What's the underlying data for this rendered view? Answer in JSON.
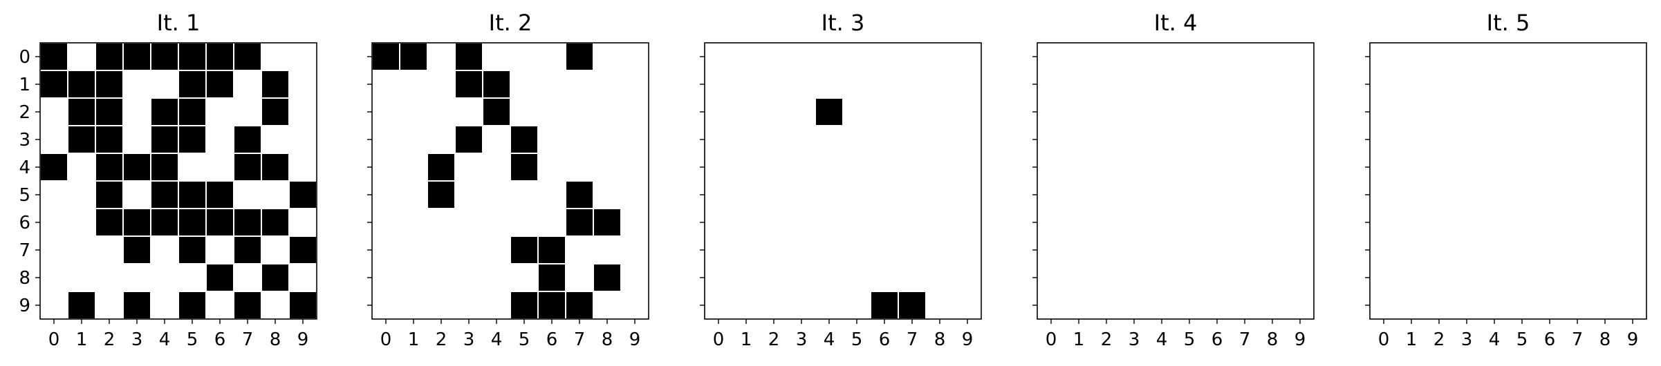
{
  "chart_data": [
    {
      "type": "heatmap",
      "title": "It. 1",
      "x_ticks": [
        "0",
        "1",
        "2",
        "3",
        "4",
        "5",
        "6",
        "7",
        "8",
        "9"
      ],
      "y_ticks": [
        "0",
        "1",
        "2",
        "3",
        "4",
        "5",
        "6",
        "7",
        "8",
        "9"
      ],
      "y_ticks_shown": true,
      "filled_color": "#000000",
      "empty_color": "#ffffff",
      "grid": [
        [
          1,
          0,
          1,
          1,
          1,
          1,
          1,
          1,
          0,
          0
        ],
        [
          1,
          1,
          1,
          0,
          0,
          1,
          1,
          0,
          1,
          0
        ],
        [
          0,
          1,
          1,
          0,
          1,
          1,
          0,
          0,
          1,
          0
        ],
        [
          0,
          1,
          1,
          0,
          1,
          1,
          0,
          1,
          0,
          0
        ],
        [
          1,
          0,
          1,
          1,
          1,
          0,
          0,
          1,
          1,
          0
        ],
        [
          0,
          0,
          1,
          0,
          1,
          1,
          1,
          0,
          0,
          1
        ],
        [
          0,
          0,
          1,
          1,
          1,
          1,
          1,
          1,
          1,
          0
        ],
        [
          0,
          0,
          0,
          1,
          0,
          1,
          0,
          1,
          0,
          1
        ],
        [
          0,
          0,
          0,
          0,
          0,
          0,
          1,
          0,
          1,
          0
        ],
        [
          0,
          1,
          0,
          1,
          0,
          1,
          0,
          1,
          0,
          1
        ]
      ]
    },
    {
      "type": "heatmap",
      "title": "It. 2",
      "x_ticks": [
        "0",
        "1",
        "2",
        "3",
        "4",
        "5",
        "6",
        "7",
        "8",
        "9"
      ],
      "y_ticks": [
        "0",
        "1",
        "2",
        "3",
        "4",
        "5",
        "6",
        "7",
        "8",
        "9"
      ],
      "y_ticks_shown": false,
      "filled_color": "#000000",
      "empty_color": "#ffffff",
      "grid": [
        [
          1,
          1,
          0,
          1,
          0,
          0,
          0,
          1,
          0,
          0
        ],
        [
          0,
          0,
          0,
          1,
          1,
          0,
          0,
          0,
          0,
          0
        ],
        [
          0,
          0,
          0,
          0,
          1,
          0,
          0,
          0,
          0,
          0
        ],
        [
          0,
          0,
          0,
          1,
          0,
          1,
          0,
          0,
          0,
          0
        ],
        [
          0,
          0,
          1,
          0,
          0,
          1,
          0,
          0,
          0,
          0
        ],
        [
          0,
          0,
          1,
          0,
          0,
          0,
          0,
          1,
          0,
          0
        ],
        [
          0,
          0,
          0,
          0,
          0,
          0,
          0,
          1,
          1,
          0
        ],
        [
          0,
          0,
          0,
          0,
          0,
          1,
          1,
          0,
          0,
          0
        ],
        [
          0,
          0,
          0,
          0,
          0,
          0,
          1,
          0,
          1,
          0
        ],
        [
          0,
          0,
          0,
          0,
          0,
          1,
          1,
          1,
          0,
          0
        ]
      ]
    },
    {
      "type": "heatmap",
      "title": "It. 3",
      "x_ticks": [
        "0",
        "1",
        "2",
        "3",
        "4",
        "5",
        "6",
        "7",
        "8",
        "9"
      ],
      "y_ticks": [
        "0",
        "1",
        "2",
        "3",
        "4",
        "5",
        "6",
        "7",
        "8",
        "9"
      ],
      "y_ticks_shown": false,
      "filled_color": "#000000",
      "empty_color": "#ffffff",
      "grid": [
        [
          0,
          0,
          0,
          0,
          0,
          0,
          0,
          0,
          0,
          0
        ],
        [
          0,
          0,
          0,
          0,
          0,
          0,
          0,
          0,
          0,
          0
        ],
        [
          0,
          0,
          0,
          0,
          1,
          0,
          0,
          0,
          0,
          0
        ],
        [
          0,
          0,
          0,
          0,
          0,
          0,
          0,
          0,
          0,
          0
        ],
        [
          0,
          0,
          0,
          0,
          0,
          0,
          0,
          0,
          0,
          0
        ],
        [
          0,
          0,
          0,
          0,
          0,
          0,
          0,
          0,
          0,
          0
        ],
        [
          0,
          0,
          0,
          0,
          0,
          0,
          0,
          0,
          0,
          0
        ],
        [
          0,
          0,
          0,
          0,
          0,
          0,
          0,
          0,
          0,
          0
        ],
        [
          0,
          0,
          0,
          0,
          0,
          0,
          0,
          0,
          0,
          0
        ],
        [
          0,
          0,
          0,
          0,
          0,
          0,
          1,
          1,
          0,
          0
        ]
      ]
    },
    {
      "type": "heatmap",
      "title": "It. 4",
      "x_ticks": [
        "0",
        "1",
        "2",
        "3",
        "4",
        "5",
        "6",
        "7",
        "8",
        "9"
      ],
      "y_ticks": [
        "0",
        "1",
        "2",
        "3",
        "4",
        "5",
        "6",
        "7",
        "8",
        "9"
      ],
      "y_ticks_shown": false,
      "filled_color": "#000000",
      "empty_color": "#ffffff",
      "grid": [
        [
          0,
          0,
          0,
          0,
          0,
          0,
          0,
          0,
          0,
          0
        ],
        [
          0,
          0,
          0,
          0,
          0,
          0,
          0,
          0,
          0,
          0
        ],
        [
          0,
          0,
          0,
          0,
          0,
          0,
          0,
          0,
          0,
          0
        ],
        [
          0,
          0,
          0,
          0,
          0,
          0,
          0,
          0,
          0,
          0
        ],
        [
          0,
          0,
          0,
          0,
          0,
          0,
          0,
          0,
          0,
          0
        ],
        [
          0,
          0,
          0,
          0,
          0,
          0,
          0,
          0,
          0,
          0
        ],
        [
          0,
          0,
          0,
          0,
          0,
          0,
          0,
          0,
          0,
          0
        ],
        [
          0,
          0,
          0,
          0,
          0,
          0,
          0,
          0,
          0,
          0
        ],
        [
          0,
          0,
          0,
          0,
          0,
          0,
          0,
          0,
          0,
          0
        ],
        [
          0,
          0,
          0,
          0,
          0,
          0,
          0,
          0,
          0,
          0
        ]
      ]
    },
    {
      "type": "heatmap",
      "title": "It. 5",
      "x_ticks": [
        "0",
        "1",
        "2",
        "3",
        "4",
        "5",
        "6",
        "7",
        "8",
        "9"
      ],
      "y_ticks": [
        "0",
        "1",
        "2",
        "3",
        "4",
        "5",
        "6",
        "7",
        "8",
        "9"
      ],
      "y_ticks_shown": false,
      "filled_color": "#000000",
      "empty_color": "#ffffff",
      "grid": [
        [
          0,
          0,
          0,
          0,
          0,
          0,
          0,
          0,
          0,
          0
        ],
        [
          0,
          0,
          0,
          0,
          0,
          0,
          0,
          0,
          0,
          0
        ],
        [
          0,
          0,
          0,
          0,
          0,
          0,
          0,
          0,
          0,
          0
        ],
        [
          0,
          0,
          0,
          0,
          0,
          0,
          0,
          0,
          0,
          0
        ],
        [
          0,
          0,
          0,
          0,
          0,
          0,
          0,
          0,
          0,
          0
        ],
        [
          0,
          0,
          0,
          0,
          0,
          0,
          0,
          0,
          0,
          0
        ],
        [
          0,
          0,
          0,
          0,
          0,
          0,
          0,
          0,
          0,
          0
        ],
        [
          0,
          0,
          0,
          0,
          0,
          0,
          0,
          0,
          0,
          0
        ],
        [
          0,
          0,
          0,
          0,
          0,
          0,
          0,
          0,
          0,
          0
        ],
        [
          0,
          0,
          0,
          0,
          0,
          0,
          0,
          0,
          0,
          0
        ]
      ]
    }
  ]
}
